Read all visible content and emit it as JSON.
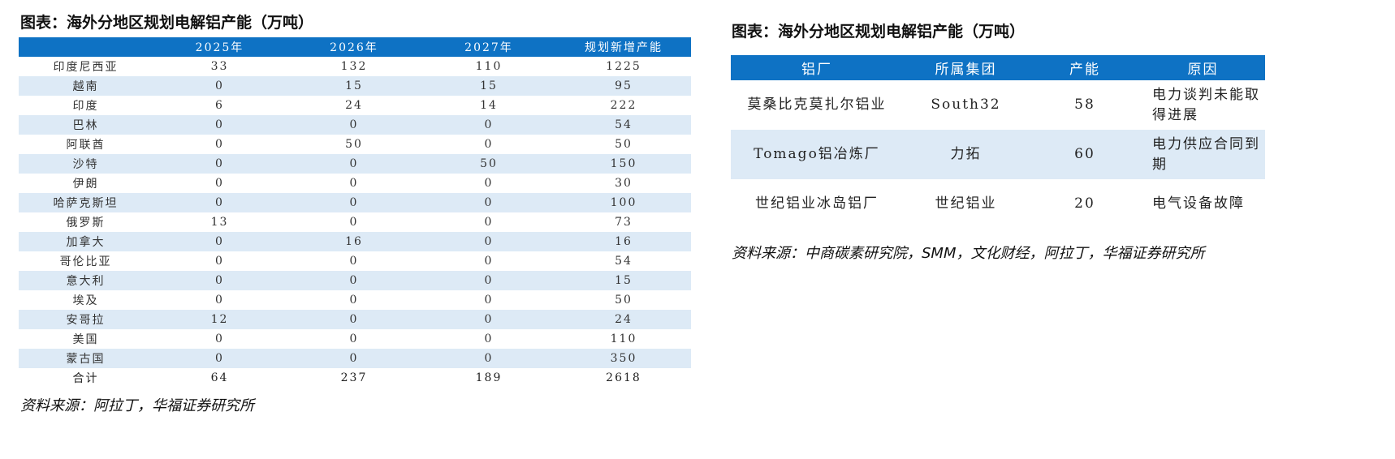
{
  "left": {
    "title": "图表：海外分地区规划电解铝产能（万吨）",
    "headers": [
      "",
      "2025年",
      "2026年",
      "2027年",
      "规划新增产能"
    ],
    "rows": [
      [
        "印度尼西亚",
        "33",
        "132",
        "110",
        "1225"
      ],
      [
        "越南",
        "0",
        "15",
        "15",
        "95"
      ],
      [
        "印度",
        "6",
        "24",
        "14",
        "222"
      ],
      [
        "巴林",
        "0",
        "0",
        "0",
        "54"
      ],
      [
        "阿联酋",
        "0",
        "50",
        "0",
        "50"
      ],
      [
        "沙特",
        "0",
        "0",
        "50",
        "150"
      ],
      [
        "伊朗",
        "0",
        "0",
        "0",
        "30"
      ],
      [
        "哈萨克斯坦",
        "0",
        "0",
        "0",
        "100"
      ],
      [
        "俄罗斯",
        "13",
        "0",
        "0",
        "73"
      ],
      [
        "加拿大",
        "0",
        "16",
        "0",
        "16"
      ],
      [
        "哥伦比亚",
        "0",
        "0",
        "0",
        "54"
      ],
      [
        "意大利",
        "0",
        "0",
        "0",
        "15"
      ],
      [
        "埃及",
        "0",
        "0",
        "0",
        "50"
      ],
      [
        "安哥拉",
        "12",
        "0",
        "0",
        "24"
      ],
      [
        "美国",
        "0",
        "0",
        "0",
        "110"
      ],
      [
        "蒙古国",
        "0",
        "0",
        "0",
        "350"
      ]
    ],
    "total": [
      "合计",
      "64",
      "237",
      "189",
      "2618"
    ],
    "source": "资料来源：阿拉丁，华福证券研究所"
  },
  "right": {
    "title": "图表：海外分地区规划电解铝产能（万吨）",
    "headers": [
      "铝厂",
      "所属集团",
      "产能",
      "原因"
    ],
    "rows": [
      [
        "莫桑比克莫扎尔铝业",
        "South32",
        "58",
        "电力谈判未能取得进展"
      ],
      [
        "Tomago铝冶炼厂",
        "力拓",
        "60",
        "电力供应合同到期"
      ],
      [
        "世纪铝业冰岛铝厂",
        "世纪铝业",
        "20",
        "电气设备故障"
      ]
    ],
    "source": "资料来源：中商碳素研究院，SMM，文化财经，阿拉丁，华福证券研究所"
  },
  "colors": {
    "header_bg": "#0e72c4",
    "band_bg": "#ddeaf6"
  }
}
